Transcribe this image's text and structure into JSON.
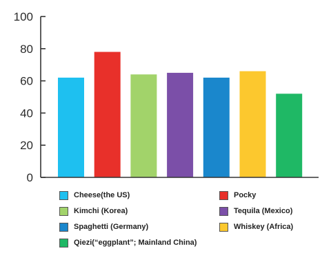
{
  "chart_data": {
    "type": "bar",
    "title": "",
    "xlabel": "",
    "ylabel": "",
    "ylim": [
      0,
      100
    ],
    "yticks": [
      0,
      20,
      40,
      60,
      80,
      100
    ],
    "grid": false,
    "legend_placement": "bottom",
    "categories": [
      "Cheese(the US)",
      "Pocky",
      "Kimchi (Korea)",
      "Tequila (Mexico)",
      "Spaghetti (Germany)",
      "Whiskey (Africa)",
      "Qiezi(“eggplant”; Mainland China)"
    ],
    "values": [
      62,
      78,
      64,
      65,
      62,
      66,
      52
    ],
    "colors": [
      "#1ec0f0",
      "#e8302a",
      "#a2d36a",
      "#7b4fa8",
      "#1a87cc",
      "#fcc82e",
      "#1fb865"
    ]
  }
}
